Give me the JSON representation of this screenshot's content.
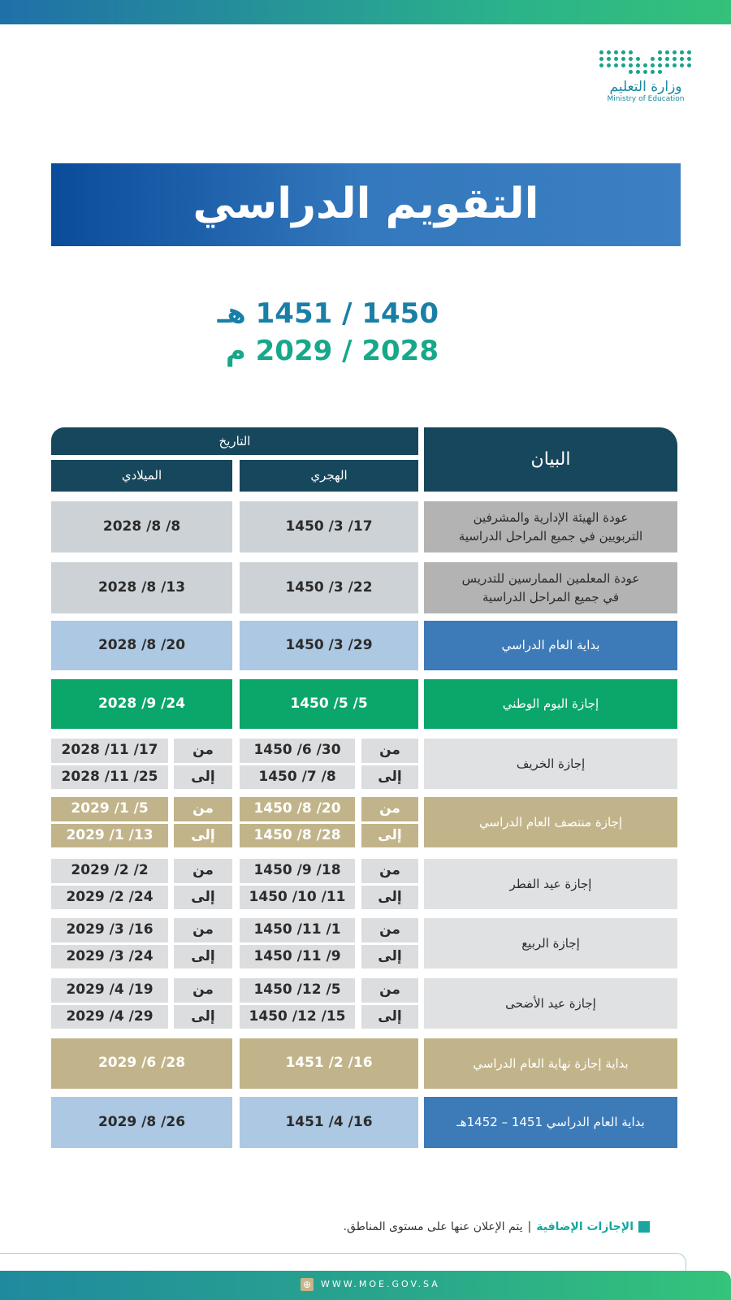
{
  "logo": {
    "arabic": "وزارة التعليم",
    "english": "Ministry of Education"
  },
  "title": "التقويم الدراسي",
  "years": {
    "hijri": "1450 / 1451 هـ",
    "gregorian": "2028 / 2029 م"
  },
  "table": {
    "headers": {
      "statement": "البيان",
      "date": "التاريخ",
      "hijri": "الهجري",
      "gregorian": "الميلادي"
    },
    "from_label": "من",
    "to_label": "إلى",
    "rows": [
      {
        "label": "عودة الهيئة الإدارية والمشرفين التربويين في جميع المراحل الدراسية",
        "hijri": "17/ 3/ 1450",
        "gregorian": "8/ 8/ 2028",
        "style": "gray"
      },
      {
        "label": "عودة المعلمين الممارسين للتدريس في جميع المراحل الدراسية",
        "hijri": "22/ 3/ 1450",
        "gregorian": "13/ 8/ 2028",
        "style": "gray"
      },
      {
        "label": "بداية العام الدراسي",
        "hijri": "29/ 3/ 1450",
        "gregorian": "20/ 8/ 2028",
        "style": "blue"
      },
      {
        "label": "إجازة اليوم الوطني",
        "hijri": "5/ 5/ 1450",
        "gregorian": "24/ 9/ 2028",
        "style": "green"
      },
      {
        "label": "إجازة الخريف",
        "hijri_from": "30/ 6/ 1450",
        "hijri_to": "8/ 7/ 1450",
        "gregorian_from": "17/ 11/ 2028",
        "gregorian_to": "25/ 11/ 2028",
        "style": "light"
      },
      {
        "label": "إجازة منتصف العام الدراسي",
        "hijri_from": "20/ 8/ 1450",
        "hijri_to": "28/ 8/ 1450",
        "gregorian_from": "5/ 1/ 2029",
        "gregorian_to": "13/ 1/ 2029",
        "style": "tan"
      },
      {
        "label": "إجازة عيد الفطر",
        "hijri_from": "18/ 9/ 1450",
        "hijri_to": "11/ 10/ 1450",
        "gregorian_from": "2/ 2/ 2029",
        "gregorian_to": "24/ 2/ 2029",
        "style": "light"
      },
      {
        "label": "إجازة الربيع",
        "hijri_from": "1/ 11/ 1450",
        "hijri_to": "9/ 11/ 1450",
        "gregorian_from": "16/ 3/ 2029",
        "gregorian_to": "24/ 3/ 2029",
        "style": "light"
      },
      {
        "label": "إجازة عيد الأضحى",
        "hijri_from": "5/ 12/ 1450",
        "hijri_to": "15/ 12/ 1450",
        "gregorian_from": "19/ 4/ 2029",
        "gregorian_to": "29/ 4/ 2029",
        "style": "light"
      },
      {
        "label": "بداية إجازة نهاية العام الدراسي",
        "hijri": "16/ 2/ 1451",
        "gregorian": "28/ 6/ 2029",
        "style": "tan"
      },
      {
        "label": "بداية العام الدراسي 1451 – 1452هـ",
        "hijri": "16/ 4/ 1451",
        "gregorian": "26/ 8/ 2029",
        "style": "blue"
      }
    ]
  },
  "note": {
    "highlight": "الإجازات الإضافية",
    "separator": "|",
    "text": "يتم الإعلان عنها على مستوى المناطق."
  },
  "footer": {
    "url": "WWW.MOE.GOV.SA"
  },
  "colors": {
    "header": "#17475c",
    "blue_label": "#3d7ab8",
    "blue_cell": "#adc8e2",
    "green": "#0aa66a",
    "tan": "#c2b48a",
    "gray_cell": "#cdd2d6",
    "gray_label": "#b3b3b3",
    "light": "#e0e1e2"
  }
}
